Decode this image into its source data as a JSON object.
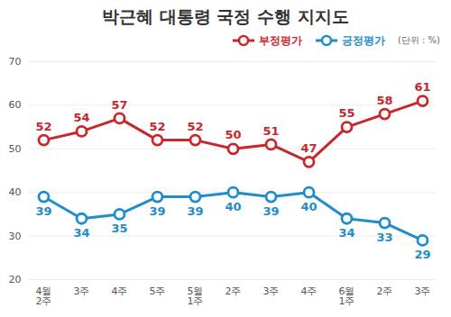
{
  "chart_data": {
    "type": "line",
    "title": "박근혜 대통령 국정 수행 지지도",
    "subtitle": "(단위 : %)",
    "categories": [
      "4월\n2주",
      "3주",
      "4주",
      "5주",
      "5월\n1주",
      "2주",
      "3주",
      "4주",
      "6월\n1주",
      "2주",
      "3주"
    ],
    "series": [
      {
        "name": "부정평가",
        "color": "#c8282c",
        "marker": "circle",
        "line_style": "solid",
        "values": [
          52,
          54,
          57,
          52,
          52,
          50,
          51,
          47,
          55,
          58,
          61
        ]
      },
      {
        "name": "긍정평가",
        "color": "#1f8ccc",
        "marker": "circle",
        "line_style": "solid",
        "values": [
          39,
          34,
          35,
          39,
          39,
          40,
          39,
          40,
          34,
          33,
          29
        ]
      }
    ],
    "ylim": [
      20,
      70
    ],
    "yticks": [
      20,
      30,
      40,
      50,
      60,
      70
    ],
    "grid": true,
    "legend": "top-right",
    "data_labels": true
  }
}
